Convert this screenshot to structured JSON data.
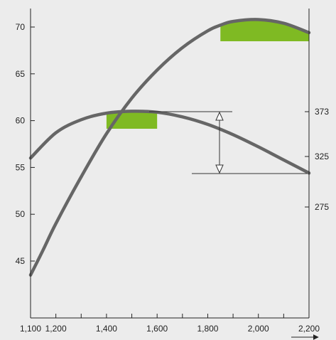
{
  "chart_data": {
    "type": "line",
    "title": "",
    "xlabel": "",
    "ylabel": "",
    "y2label": "",
    "xlim": [
      1100,
      2200
    ],
    "ylim": [
      40,
      72
    ],
    "y2lim": [
      150,
      420
    ],
    "x_ticks": [
      1100,
      1200,
      1400,
      1600,
      1800,
      2000,
      2200
    ],
    "x_tick_labels": [
      "1,100",
      "1,200",
      "1,400",
      "1,600",
      "1,800",
      "2,000",
      "2,200"
    ],
    "y_ticks": [
      45,
      50,
      55,
      60,
      65,
      70
    ],
    "y_tick_labels": [
      "45",
      "50",
      "55",
      "60",
      "65",
      "70"
    ],
    "y2_ticks": [
      275,
      325,
      373
    ],
    "y2_tick_labels": [
      "275",
      "325",
      "373"
    ],
    "grid": false,
    "series": [
      {
        "x": [
          1100,
          1150,
          1200,
          1300,
          1400,
          1500,
          1600,
          1700,
          1800,
          1850,
          1900,
          2000,
          2100,
          2200
        ],
        "values": [
          43.5,
          46.2,
          49.0,
          54.0,
          58.6,
          62.4,
          65.4,
          67.8,
          69.6,
          70.2,
          70.6,
          70.8,
          70.4,
          69.4
        ],
        "color": "#666666"
      },
      {
        "x": [
          1100,
          1200,
          1300,
          1400,
          1500,
          1600,
          1700,
          1800,
          1900,
          2000,
          2100,
          2200
        ],
        "values": [
          56.0,
          58.7,
          60.1,
          60.8,
          61.0,
          60.9,
          60.4,
          59.6,
          58.5,
          57.2,
          55.8,
          54.4
        ],
        "color": "#666666"
      }
    ],
    "highlight_bands": [
      {
        "x_start": 1400,
        "x_end": 1600,
        "color": "#7fba23"
      },
      {
        "x_start": 1850,
        "x_end": 2200,
        "color": "#7fba23"
      }
    ],
    "range_indicator": {
      "upper_y2": 373,
      "lower_y2": 304,
      "at_x": 1850
    },
    "colors": {
      "curve": "#666666",
      "highlight": "#7fba23",
      "axis": "#222222",
      "background": "#ececec"
    }
  }
}
